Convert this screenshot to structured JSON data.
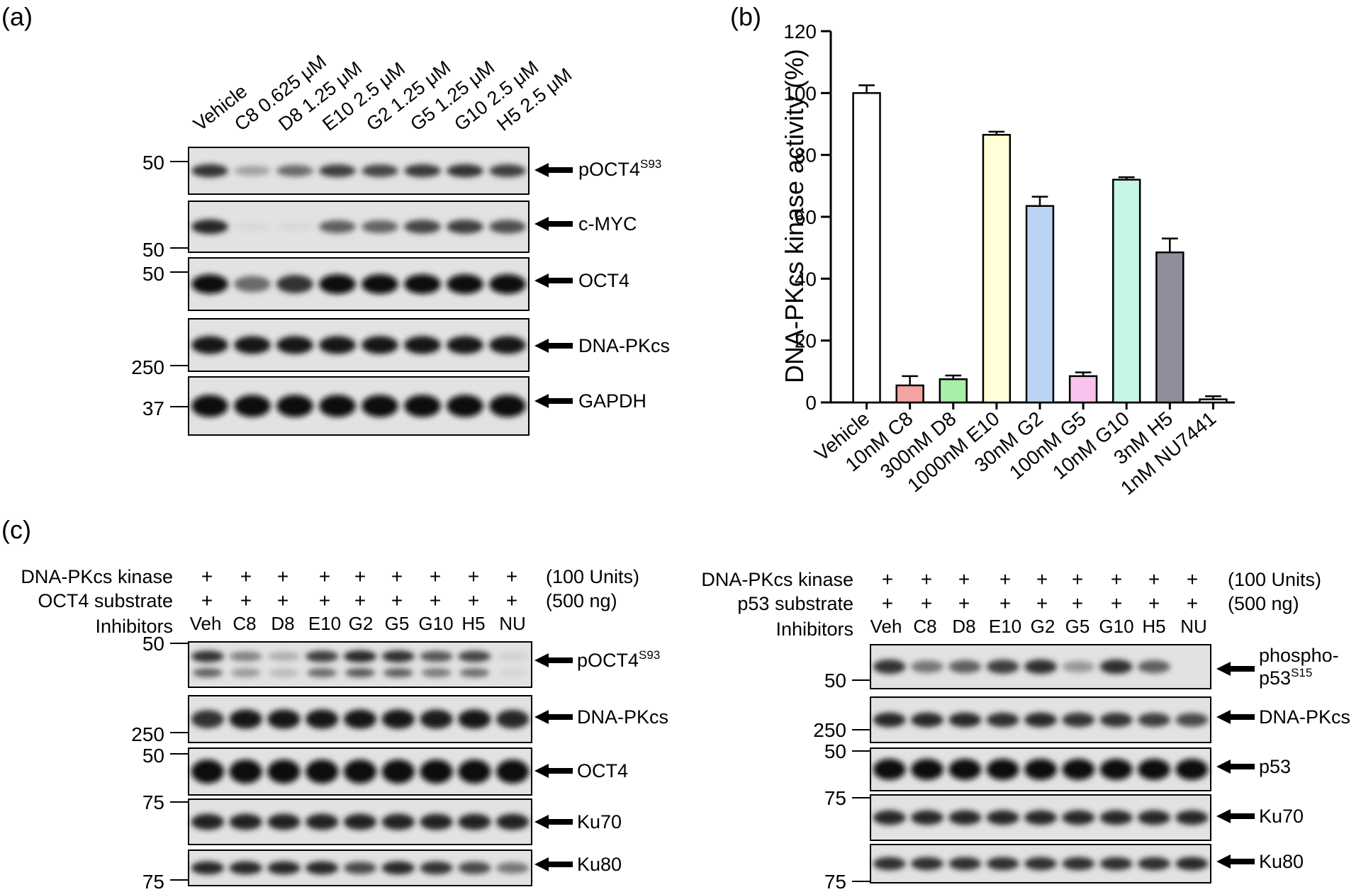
{
  "panels": {
    "a": "(a)",
    "b": "(b)",
    "c": "(c)"
  },
  "panel_a": {
    "lanes": [
      "Vehicle",
      "C8 0.625 μM",
      "D8 1.25 μM",
      "E10 2.5 μM",
      "G2 1.25 μM",
      "G5 1.25 μM",
      "G10 2.5 μM",
      "H5 2.5 μM"
    ],
    "blots": [
      {
        "name": "pOCT4",
        "sup": "S93",
        "intensity": [
          0.8,
          0.3,
          0.55,
          0.75,
          0.72,
          0.78,
          0.8,
          0.75
        ]
      },
      {
        "name": "c-MYC",
        "sup": "",
        "intensity": [
          0.85,
          0.06,
          0.06,
          0.6,
          0.58,
          0.72,
          0.75,
          0.68
        ]
      },
      {
        "name": "OCT4",
        "sup": "",
        "intensity": [
          0.95,
          0.55,
          0.8,
          0.98,
          0.98,
          0.98,
          0.98,
          0.98
        ]
      },
      {
        "name": "DNA-PKcs",
        "sup": "",
        "intensity": [
          0.92,
          0.92,
          0.92,
          0.92,
          0.92,
          0.92,
          0.92,
          0.92
        ]
      },
      {
        "name": "GAPDH",
        "sup": "",
        "intensity": [
          0.95,
          0.95,
          0.95,
          0.95,
          0.95,
          0.95,
          0.95,
          0.95
        ]
      }
    ],
    "markers": [
      "50",
      "50",
      "50",
      "250",
      "37"
    ]
  },
  "chart_data": {
    "type": "bar",
    "title": "",
    "xlabel": "",
    "ylabel": "DNA-PKcs kinase activity (%)",
    "ylim": [
      0,
      120
    ],
    "yticks": [
      0,
      20,
      40,
      60,
      80,
      100,
      120
    ],
    "categories": [
      "Vehicle",
      "10nM C8",
      "300nM D8",
      "1000nM E10",
      "30nM G2",
      "100nM G5",
      "10nM G10",
      "3nM H5",
      "1nM NU7441"
    ],
    "values": [
      100,
      5.5,
      7.5,
      86.5,
      63.5,
      8.5,
      72,
      48.5,
      1
    ],
    "errors": [
      2.5,
      3,
      1.2,
      1,
      3,
      1.2,
      0.8,
      4.5,
      1
    ],
    "colors": [
      "#ffffff",
      "#f4a3a3",
      "#a8f0a8",
      "#ffffd8",
      "#bcd4f4",
      "#f8c2ec",
      "#c6f6e8",
      "#8e8e9c",
      "#ffffff"
    ],
    "grid": false
  },
  "panel_c_left": {
    "rows": [
      {
        "label": "DNA-PKcs kinase",
        "signs": [
          "+",
          "+",
          "+",
          "+",
          "+",
          "+",
          "+",
          "+",
          "+"
        ],
        "note": "(100 Units)"
      },
      {
        "label": "OCT4 substrate",
        "signs": [
          "+",
          "+",
          "+",
          "+",
          "+",
          "+",
          "+",
          "+",
          "+"
        ],
        "note": "(500 ng)"
      }
    ],
    "inhibitors_label": "Inhibitors",
    "lanes": [
      "Veh",
      "C8",
      "D8",
      "E10",
      "G2",
      "G5",
      "G10",
      "H5",
      "NU"
    ],
    "blots": [
      {
        "name": "pOCT4",
        "sup": "S93",
        "intensity": [
          0.8,
          0.45,
          0.25,
          0.75,
          0.85,
          0.82,
          0.65,
          0.72,
          0.1
        ]
      },
      {
        "name": "DNA-PKcs",
        "sup": "",
        "intensity": [
          0.8,
          0.92,
          0.92,
          0.92,
          0.92,
          0.92,
          0.9,
          0.92,
          0.85
        ]
      },
      {
        "name": "OCT4",
        "sup": "",
        "intensity": [
          0.98,
          0.98,
          0.98,
          0.98,
          0.98,
          0.98,
          0.98,
          0.98,
          0.98
        ]
      },
      {
        "name": "Ku70",
        "sup": "",
        "intensity": [
          0.88,
          0.88,
          0.88,
          0.88,
          0.88,
          0.88,
          0.88,
          0.88,
          0.88
        ]
      },
      {
        "name": "Ku80",
        "sup": "",
        "intensity": [
          0.85,
          0.85,
          0.85,
          0.85,
          0.7,
          0.85,
          0.8,
          0.7,
          0.5
        ]
      }
    ],
    "markers": [
      "50",
      "250",
      "50",
      "75",
      "75"
    ]
  },
  "panel_c_right": {
    "rows": [
      {
        "label": "DNA-PKcs kinase",
        "signs": [
          "+",
          "+",
          "+",
          "+",
          "+",
          "+",
          "+",
          "+",
          "+"
        ],
        "note": "(100 Units)"
      },
      {
        "label": "p53 substrate",
        "signs": [
          "+",
          "+",
          "+",
          "+",
          "+",
          "+",
          "+",
          "+",
          "+"
        ],
        "note": "(500 ng)"
      }
    ],
    "inhibitors_label": "Inhibitors",
    "lanes": [
      "Veh",
      "C8",
      "D8",
      "E10",
      "G2",
      "G5",
      "G10",
      "H5",
      "NU"
    ],
    "blots": [
      {
        "name": "phospho-",
        "name2": "p53",
        "sup": "S15",
        "intensity": [
          0.8,
          0.5,
          0.6,
          0.75,
          0.82,
          0.35,
          0.82,
          0.6,
          0.0
        ]
      },
      {
        "name": "DNA-PKcs",
        "sup": "",
        "intensity": [
          0.85,
          0.85,
          0.85,
          0.82,
          0.85,
          0.8,
          0.8,
          0.75,
          0.7
        ]
      },
      {
        "name": "p53",
        "sup": "",
        "intensity": [
          0.98,
          0.98,
          0.98,
          0.98,
          0.98,
          0.98,
          0.98,
          0.98,
          0.98
        ]
      },
      {
        "name": "Ku70",
        "sup": "",
        "intensity": [
          0.85,
          0.85,
          0.85,
          0.85,
          0.85,
          0.85,
          0.85,
          0.85,
          0.85
        ]
      },
      {
        "name": "Ku80",
        "sup": "",
        "intensity": [
          0.82,
          0.82,
          0.82,
          0.82,
          0.82,
          0.82,
          0.82,
          0.82,
          0.85
        ]
      }
    ],
    "markers": [
      "50",
      "250",
      "50",
      "75",
      "75"
    ]
  }
}
